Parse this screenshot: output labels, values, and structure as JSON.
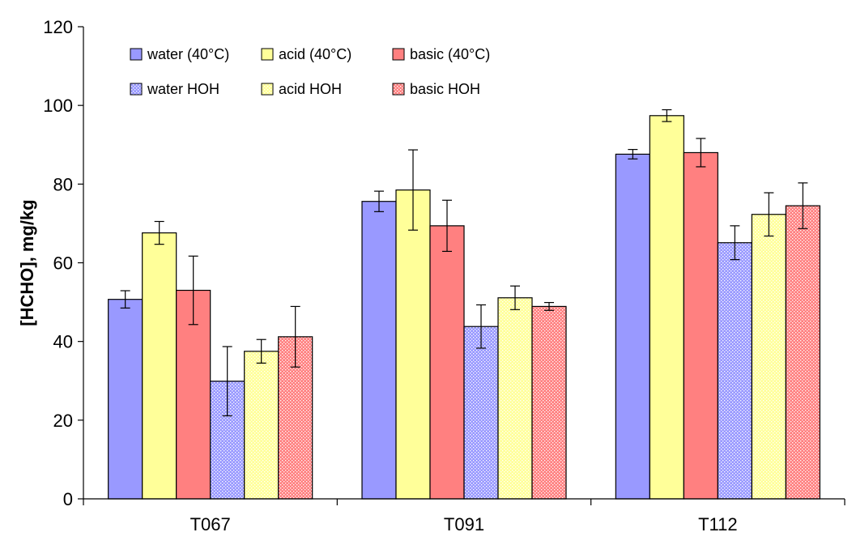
{
  "chart_data": {
    "type": "bar",
    "title": "",
    "xlabel": "",
    "ylabel": "[HCHO], mg/kg",
    "ylim": [
      0,
      120
    ],
    "yticks": [
      0,
      20,
      40,
      60,
      80,
      100,
      120
    ],
    "grid": false,
    "legend_position": "top-left",
    "categories": [
      "T067",
      "T091",
      "T112"
    ],
    "series": [
      {
        "name": "water (40°C)",
        "values": [
          50.7,
          75.6,
          87.6
        ],
        "errors": [
          2.2,
          2.6,
          1.2
        ],
        "color": "#9999ff",
        "pattern": "solid"
      },
      {
        "name": "acid (40°C)",
        "values": [
          67.6,
          78.5,
          97.4
        ],
        "errors": [
          2.9,
          10.2,
          1.5
        ],
        "color": "#ffff99",
        "pattern": "solid"
      },
      {
        "name": "basic (40°C)",
        "values": [
          53.0,
          69.4,
          88.0
        ],
        "errors": [
          8.7,
          6.5,
          3.6
        ],
        "color": "#ff8080",
        "pattern": "solid"
      },
      {
        "name": "water HOH",
        "values": [
          29.9,
          43.8,
          65.1
        ],
        "errors": [
          8.8,
          5.5,
          4.3
        ],
        "color": "#9999ff",
        "pattern": "dotted"
      },
      {
        "name": "acid HOH",
        "values": [
          37.5,
          51.1,
          72.3
        ],
        "errors": [
          3.0,
          3.0,
          5.5
        ],
        "color": "#ffff99",
        "pattern": "dotted"
      },
      {
        "name": "basic HOH",
        "values": [
          41.2,
          48.9,
          74.5
        ],
        "errors": [
          7.7,
          1.0,
          5.8
        ],
        "color": "#ff8080",
        "pattern": "dotted"
      }
    ]
  }
}
